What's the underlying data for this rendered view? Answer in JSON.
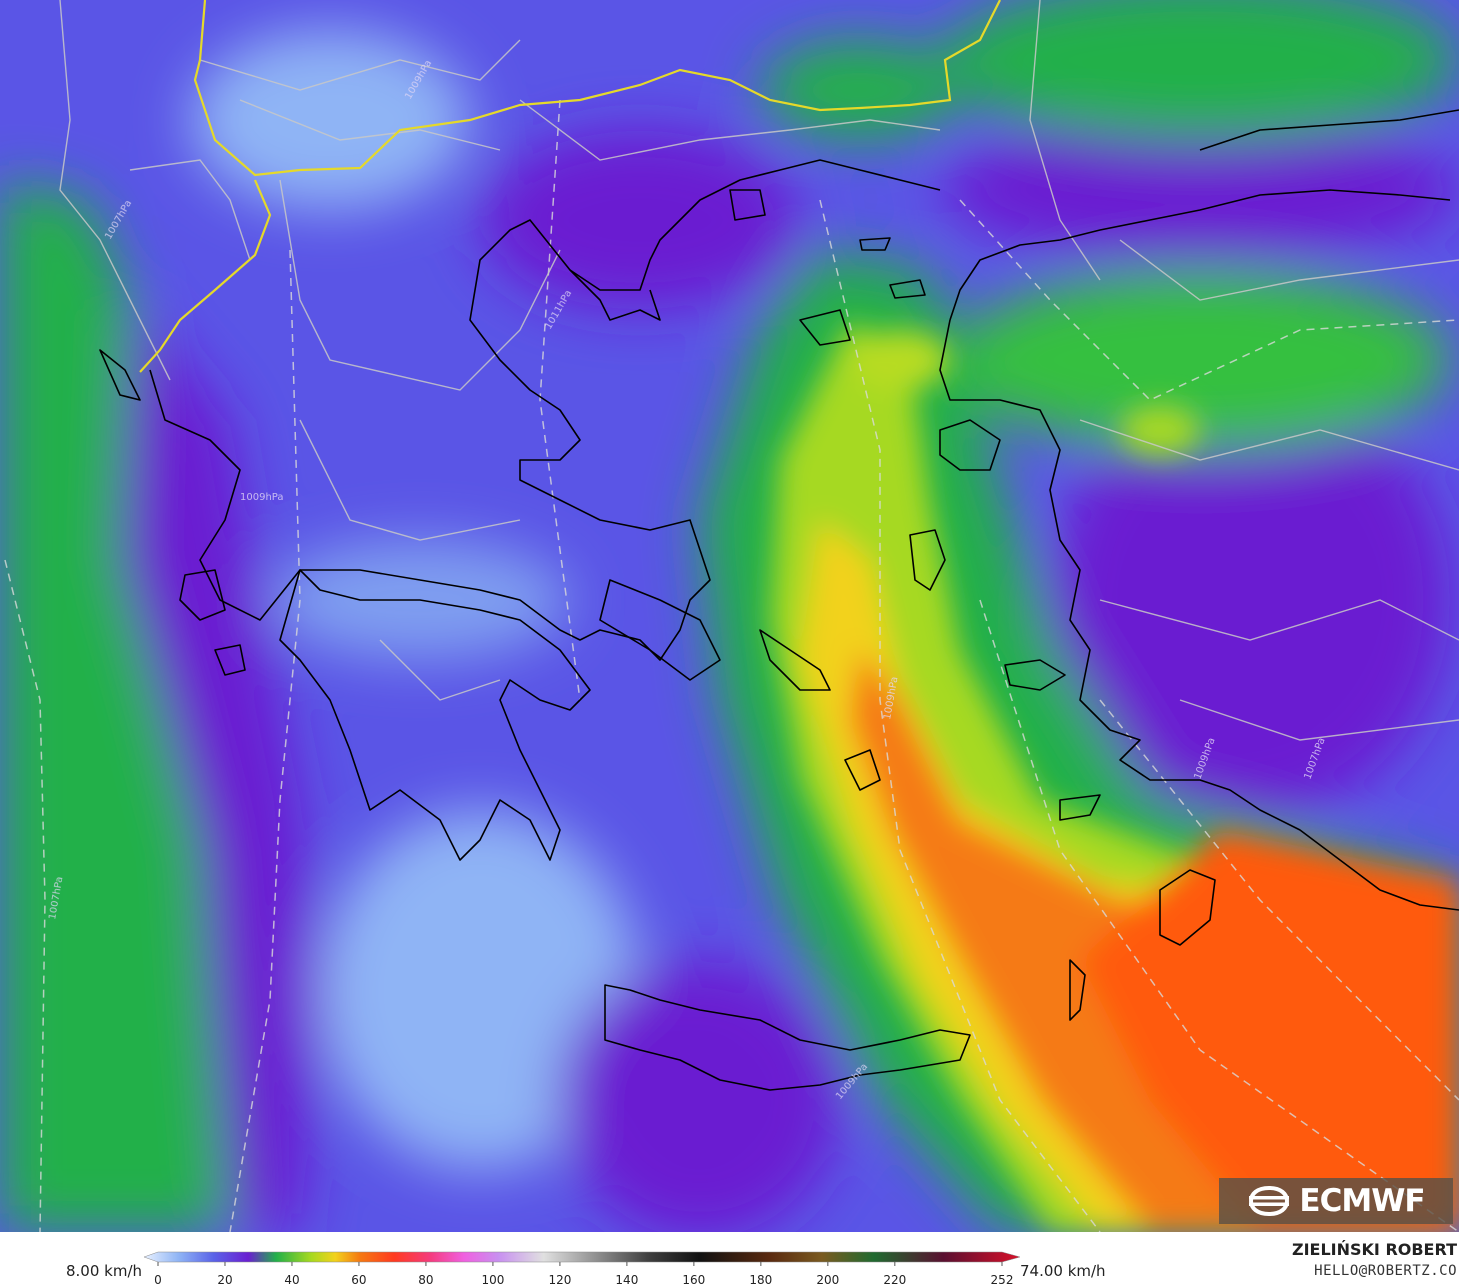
{
  "map": {
    "source_logo": "ECMWF",
    "colors": {
      "calm": "#8fb4f5",
      "light": "#5a63e8",
      "moderate": "#6a1fd1",
      "fresh_green": "#22b04a",
      "strong_green": "#63d62b",
      "yellow": "#f2d21c",
      "orange": "#f57a12",
      "red_orange": "#ff5a10",
      "coastline": "#000000",
      "border": "#c8c8c8",
      "country_border_highlight": "#e5d92a",
      "isobar": "#d9d9d9"
    },
    "isobar_labels": [
      "1007hPa",
      "1009hPa",
      "1011hPa",
      "1009hPa",
      "1007hPa",
      "1009hPa",
      "1009hPa",
      "1007hPa",
      "1009hPa"
    ]
  },
  "legend": {
    "min_label": "8.00 km/h",
    "max_label": "74.00 km/h",
    "ticks": [
      "0",
      "20",
      "40",
      "60",
      "80",
      "100",
      "120",
      "140",
      "160",
      "180",
      "200",
      "220",
      "252"
    ],
    "tick_values": [
      0,
      20,
      40,
      60,
      80,
      100,
      120,
      140,
      160,
      180,
      200,
      220,
      252
    ],
    "range": [
      0,
      252
    ],
    "gradient_stops": [
      {
        "v": 0,
        "c": "#e8f1ff"
      },
      {
        "v": 10,
        "c": "#8fb4f5"
      },
      {
        "v": 20,
        "c": "#5a63e8"
      },
      {
        "v": 30,
        "c": "#6a1fd1"
      },
      {
        "v": 38,
        "c": "#22b04a"
      },
      {
        "v": 48,
        "c": "#a6d920"
      },
      {
        "v": 55,
        "c": "#f2d21c"
      },
      {
        "v": 62,
        "c": "#f57a12"
      },
      {
        "v": 72,
        "c": "#ff3a20"
      },
      {
        "v": 82,
        "c": "#f53a7a"
      },
      {
        "v": 92,
        "c": "#f060e0"
      },
      {
        "v": 102,
        "c": "#c890f0"
      },
      {
        "v": 115,
        "c": "#e0e0e0"
      },
      {
        "v": 130,
        "c": "#909090"
      },
      {
        "v": 145,
        "c": "#404040"
      },
      {
        "v": 160,
        "c": "#111111"
      },
      {
        "v": 180,
        "c": "#5a2a10"
      },
      {
        "v": 195,
        "c": "#7a5a20"
      },
      {
        "v": 210,
        "c": "#206a30"
      },
      {
        "v": 230,
        "c": "#5a1030"
      },
      {
        "v": 252,
        "c": "#d8102a"
      }
    ]
  },
  "credit": {
    "name": "ZIELIŃSKI ROBERT",
    "email": "HELLO@ROBERTZ.CO"
  }
}
